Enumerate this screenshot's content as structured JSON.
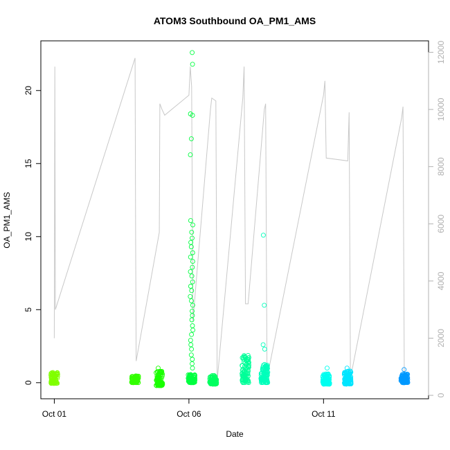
{
  "chart_data": {
    "type": "scatter",
    "title": "ATOM3 Southbound OA_PM1_AMS",
    "xlabel": "Date",
    "ylabel": "OA_PM1_AMS",
    "x_ticks": [
      {
        "day": 1,
        "label": "Oct 01"
      },
      {
        "day": 6,
        "label": "Oct 06"
      },
      {
        "day": 11,
        "label": "Oct 11"
      }
    ],
    "xlim": [
      0.5,
      14.9
    ],
    "ylim": [
      -1.1,
      23.4
    ],
    "y_ticks": [
      0,
      5,
      10,
      15,
      20
    ],
    "y2_ticks": [
      0,
      2000,
      4000,
      6000,
      8000,
      10000,
      12000
    ],
    "y2lim": [
      -120,
      12400
    ],
    "series": [
      {
        "day": 1.0,
        "color": "#80ff00",
        "ymin": -0.05,
        "ymax": 0.7,
        "outliers": []
      },
      {
        "day": 4.0,
        "color": "#33ff00",
        "ymin": 0.0,
        "ymax": 0.5,
        "outliers": []
      },
      {
        "day": 4.9,
        "color": "#1aff00",
        "ymin": -0.2,
        "ymax": 0.8,
        "outliers": [
          1.0
        ]
      },
      {
        "day": 6.1,
        "color": "#00ff40",
        "ymin": 0.0,
        "ymax": 0.6,
        "outliers": [
          22.6,
          21.8,
          18.4,
          18.3,
          16.7,
          15.6,
          11.1,
          10.8,
          10.3,
          9.9,
          9.6,
          9.3,
          8.9,
          8.6,
          8.3,
          7.9,
          7.6,
          7.3,
          6.9,
          6.6,
          6.3,
          5.9,
          5.6,
          5.3,
          4.9,
          4.6,
          4.3,
          3.9,
          3.6,
          3.3,
          2.9,
          2.6,
          2.3,
          1.9,
          1.6,
          1.3,
          1.0
        ]
      },
      {
        "day": 6.9,
        "color": "#00ff60",
        "ymin": -0.1,
        "ymax": 0.5,
        "outliers": []
      },
      {
        "day": 8.1,
        "color": "#00ff99",
        "ymin": 0.0,
        "ymax": 1.9,
        "outliers": []
      },
      {
        "day": 8.8,
        "color": "#00ffbb",
        "ymin": 0.0,
        "ymax": 1.3,
        "outliers": [
          10.1,
          5.3,
          2.6,
          2.3
        ]
      },
      {
        "day": 11.1,
        "color": "#00fff0",
        "ymin": -0.1,
        "ymax": 0.6,
        "outliers": [
          1.0
        ]
      },
      {
        "day": 11.9,
        "color": "#00e5ff",
        "ymin": -0.1,
        "ymax": 0.8,
        "outliers": [
          1.0
        ]
      },
      {
        "day": 14.0,
        "color": "#0099ff",
        "ymin": 0.0,
        "ymax": 0.6,
        "outliers": [
          0.9
        ]
      }
    ],
    "secondary_series": {
      "color": "#c8c8c8",
      "ylabel": "",
      "points": [
        [
          1.0,
          2000
        ],
        [
          1.02,
          11500
        ],
        [
          1.04,
          3000
        ],
        [
          4.0,
          11800
        ],
        [
          4.02,
          5500
        ],
        [
          4.04,
          1200
        ],
        [
          4.9,
          5700
        ],
        [
          4.92,
          10200
        ],
        [
          5.0,
          10000
        ],
        [
          5.1,
          9800
        ],
        [
          6.0,
          10500
        ],
        [
          6.05,
          11500
        ],
        [
          6.1,
          10800
        ],
        [
          6.15,
          2600
        ],
        [
          6.8,
          10000
        ],
        [
          6.85,
          10400
        ],
        [
          7.0,
          10300
        ],
        [
          7.05,
          500
        ],
        [
          8.0,
          10400
        ],
        [
          8.05,
          11500
        ],
        [
          8.1,
          3200
        ],
        [
          8.2,
          3200
        ],
        [
          8.8,
          10000
        ],
        [
          8.85,
          10200
        ],
        [
          8.9,
          600
        ],
        [
          11.0,
          10500
        ],
        [
          11.05,
          11000
        ],
        [
          11.1,
          8300
        ],
        [
          11.9,
          8200
        ],
        [
          11.95,
          9900
        ],
        [
          12.0,
          600
        ],
        [
          13.9,
          9700
        ],
        [
          13.95,
          10100
        ],
        [
          14.0,
          600
        ],
        [
          14.05,
          400
        ]
      ]
    }
  }
}
